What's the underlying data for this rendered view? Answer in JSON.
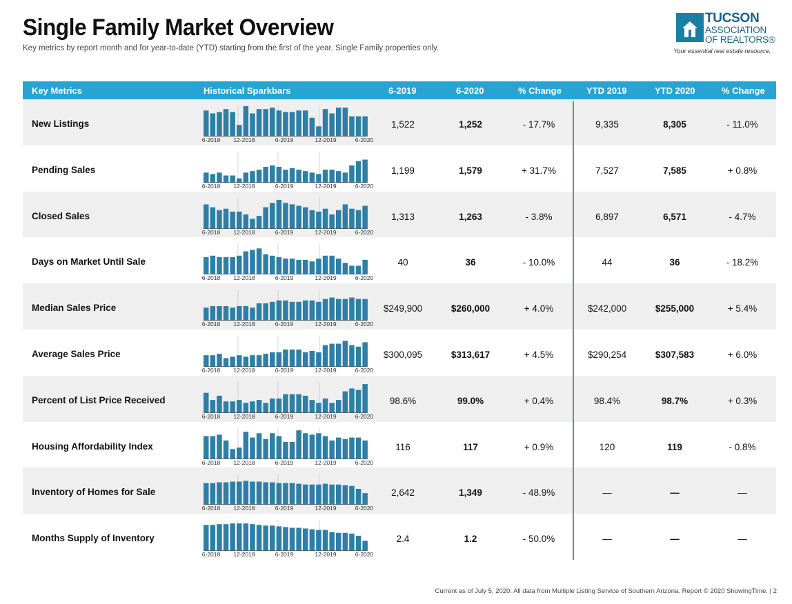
{
  "title": "Single Family Market Overview",
  "subtitle": "Key metrics by report month and for year-to-date (YTD) starting from the first of the year. Single Family properties only.",
  "logo": {
    "line1": "TUCSON",
    "line2": "ASSOCIATION",
    "line3": "OF REALTORS®",
    "tagline": "Your essential real estate resource."
  },
  "header": {
    "key_metrics": "Key Metrics",
    "sparkbars": "Historical Sparkbars",
    "m2019": "6-2019",
    "m2020": "6-2020",
    "pct_change": "% Change",
    "ytd2019": "YTD 2019",
    "ytd2020": "YTD 2020",
    "ytd_pct_change": "% Change"
  },
  "spark_axis": [
    "6-2018",
    "12-2018",
    "6-2019",
    "12-2019",
    "6-2020"
  ],
  "colors": {
    "header": "#27a4d2",
    "bars": "#2d7fa6",
    "divider": "#5b8fb8",
    "row_shade": "#efefef"
  },
  "rows": [
    {
      "label": "New Listings",
      "v2019": "1,522",
      "v2020": "1,252",
      "pct": "- 17.7%",
      "ytd2019": "9,335",
      "ytd2020": "8,305",
      "ytd_pct": "- 11.0%"
    },
    {
      "label": "Pending Sales",
      "v2019": "1,199",
      "v2020": "1,579",
      "pct": "+ 31.7%",
      "ytd2019": "7,527",
      "ytd2020": "7,585",
      "ytd_pct": "+ 0.8%"
    },
    {
      "label": "Closed Sales",
      "v2019": "1,313",
      "v2020": "1,263",
      "pct": "- 3.8%",
      "ytd2019": "6,897",
      "ytd2020": "6,571",
      "ytd_pct": "- 4.7%"
    },
    {
      "label": "Days on Market Until Sale",
      "v2019": "40",
      "v2020": "36",
      "pct": "- 10.0%",
      "ytd2019": "44",
      "ytd2020": "36",
      "ytd_pct": "- 18.2%"
    },
    {
      "label": "Median Sales Price",
      "v2019": "$249,900",
      "v2020": "$260,000",
      "pct": "+ 4.0%",
      "ytd2019": "$242,000",
      "ytd2020": "$255,000",
      "ytd_pct": "+ 5.4%"
    },
    {
      "label": "Average Sales Price",
      "v2019": "$300,095",
      "v2020": "$313,617",
      "pct": "+ 4.5%",
      "ytd2019": "$290,254",
      "ytd2020": "$307,583",
      "ytd_pct": "+ 6.0%"
    },
    {
      "label": "Percent of List Price Received",
      "v2019": "98.6%",
      "v2020": "99.0%",
      "pct": "+ 0.4%",
      "ytd2019": "98.4%",
      "ytd2020": "98.7%",
      "ytd_pct": "+ 0.3%"
    },
    {
      "label": "Housing Affordability Index",
      "v2019": "116",
      "v2020": "117",
      "pct": "+ 0.9%",
      "ytd2019": "120",
      "ytd2020": "119",
      "ytd_pct": "- 0.8%"
    },
    {
      "label": "Inventory of Homes for Sale",
      "v2019": "2,642",
      "v2020": "1,349",
      "pct": "- 48.9%",
      "ytd2019": "—",
      "ytd2020": "—",
      "ytd_pct": "—"
    },
    {
      "label": "Months Supply of Inventory",
      "v2019": "2.4",
      "v2020": "1.2",
      "pct": "- 50.0%",
      "ytd2019": "—",
      "ytd2020": "—",
      "ytd_pct": "—"
    }
  ],
  "chart_data": {
    "type": "bar",
    "x": [
      "6-2018",
      "7-2018",
      "8-2018",
      "9-2018",
      "10-2018",
      "11-2018",
      "12-2018",
      "1-2019",
      "2-2019",
      "3-2019",
      "4-2019",
      "5-2019",
      "6-2019",
      "7-2019",
      "8-2019",
      "9-2019",
      "10-2019",
      "11-2019",
      "12-2019",
      "1-2020",
      "2-2020",
      "3-2020",
      "4-2020",
      "5-2020",
      "6-2020"
    ],
    "series": [
      {
        "name": "New Listings",
        "values": [
          36,
          32,
          34,
          38,
          34,
          16,
          42,
          32,
          38,
          38,
          40,
          36,
          34,
          34,
          36,
          36,
          26,
          14,
          38,
          32,
          40,
          40,
          28,
          28,
          28
        ]
      },
      {
        "name": "Pending Sales",
        "values": [
          14,
          12,
          14,
          10,
          10,
          6,
          14,
          16,
          18,
          22,
          24,
          22,
          18,
          20,
          18,
          16,
          14,
          12,
          18,
          18,
          16,
          14,
          24,
          30,
          32
        ]
      },
      {
        "name": "Closed Sales",
        "values": [
          34,
          30,
          26,
          28,
          24,
          24,
          20,
          14,
          18,
          30,
          36,
          40,
          36,
          34,
          32,
          30,
          26,
          24,
          28,
          20,
          26,
          34,
          28,
          26,
          32
        ]
      },
      {
        "name": "Days on Market Until Sale",
        "values": [
          24,
          26,
          24,
          24,
          24,
          26,
          32,
          34,
          36,
          28,
          26,
          24,
          22,
          22,
          20,
          20,
          18,
          22,
          26,
          26,
          22,
          16,
          12,
          12,
          20
        ]
      },
      {
        "name": "Median Sales Price",
        "values": [
          18,
          20,
          20,
          20,
          18,
          20,
          20,
          18,
          24,
          24,
          26,
          28,
          28,
          26,
          26,
          28,
          28,
          26,
          30,
          32,
          30,
          30,
          32,
          30,
          30
        ]
      },
      {
        "name": "Average Sales Price",
        "values": [
          16,
          16,
          18,
          12,
          14,
          16,
          14,
          16,
          16,
          18,
          20,
          20,
          24,
          24,
          24,
          20,
          22,
          20,
          30,
          32,
          32,
          36,
          30,
          28,
          34
        ]
      },
      {
        "name": "Percent of List Price Received",
        "values": [
          28,
          18,
          24,
          16,
          16,
          18,
          14,
          16,
          18,
          14,
          20,
          20,
          26,
          26,
          26,
          24,
          18,
          14,
          20,
          14,
          18,
          30,
          34,
          32,
          40
        ]
      },
      {
        "name": "Housing Affordability Index",
        "values": [
          32,
          32,
          34,
          26,
          14,
          16,
          38,
          30,
          36,
          28,
          36,
          32,
          24,
          24,
          40,
          36,
          34,
          36,
          32,
          26,
          30,
          28,
          30,
          30,
          26
        ]
      },
      {
        "name": "Inventory of Homes for Sale",
        "values": [
          30,
          30,
          31,
          31,
          32,
          32,
          33,
          32,
          32,
          31,
          31,
          30,
          30,
          30,
          29,
          28,
          28,
          28,
          29,
          28,
          28,
          27,
          26,
          22,
          16
        ]
      },
      {
        "name": "Months Supply of Inventory",
        "values": [
          36,
          36,
          37,
          37,
          38,
          38,
          38,
          37,
          36,
          35,
          35,
          34,
          33,
          32,
          32,
          31,
          30,
          29,
          29,
          26,
          25,
          25,
          24,
          21,
          14
        ]
      }
    ]
  }
}
